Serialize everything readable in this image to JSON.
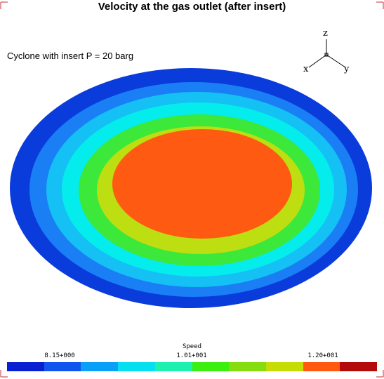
{
  "chart_data": {
    "type": "heatmap",
    "title": "Velocity at the gas outlet (after insert)",
    "subtitle": "Cyclone with insert P = 20 barg",
    "axes_triad": [
      "z",
      "x",
      "y"
    ],
    "colorbar": {
      "title": "Speed",
      "tick_labels": [
        "8.15+000",
        "1.01+001",
        "1.20+001"
      ],
      "colors": [
        "#0a1fd1",
        "#1055ee",
        "#0aa0f8",
        "#05e0f0",
        "#1ef0b0",
        "#3cef10",
        "#85dd10",
        "#c6dd05",
        "#ff5a10",
        "#b30a0a"
      ]
    },
    "contour_bands": [
      {
        "color": "#0a3cdc"
      },
      {
        "color": "#1a7ef5"
      },
      {
        "color": "#14c0f4"
      },
      {
        "color": "#05ecec"
      },
      {
        "color": "#3ce83a"
      },
      {
        "color": "#bdde10"
      },
      {
        "color": "#ff5a12"
      }
    ]
  }
}
